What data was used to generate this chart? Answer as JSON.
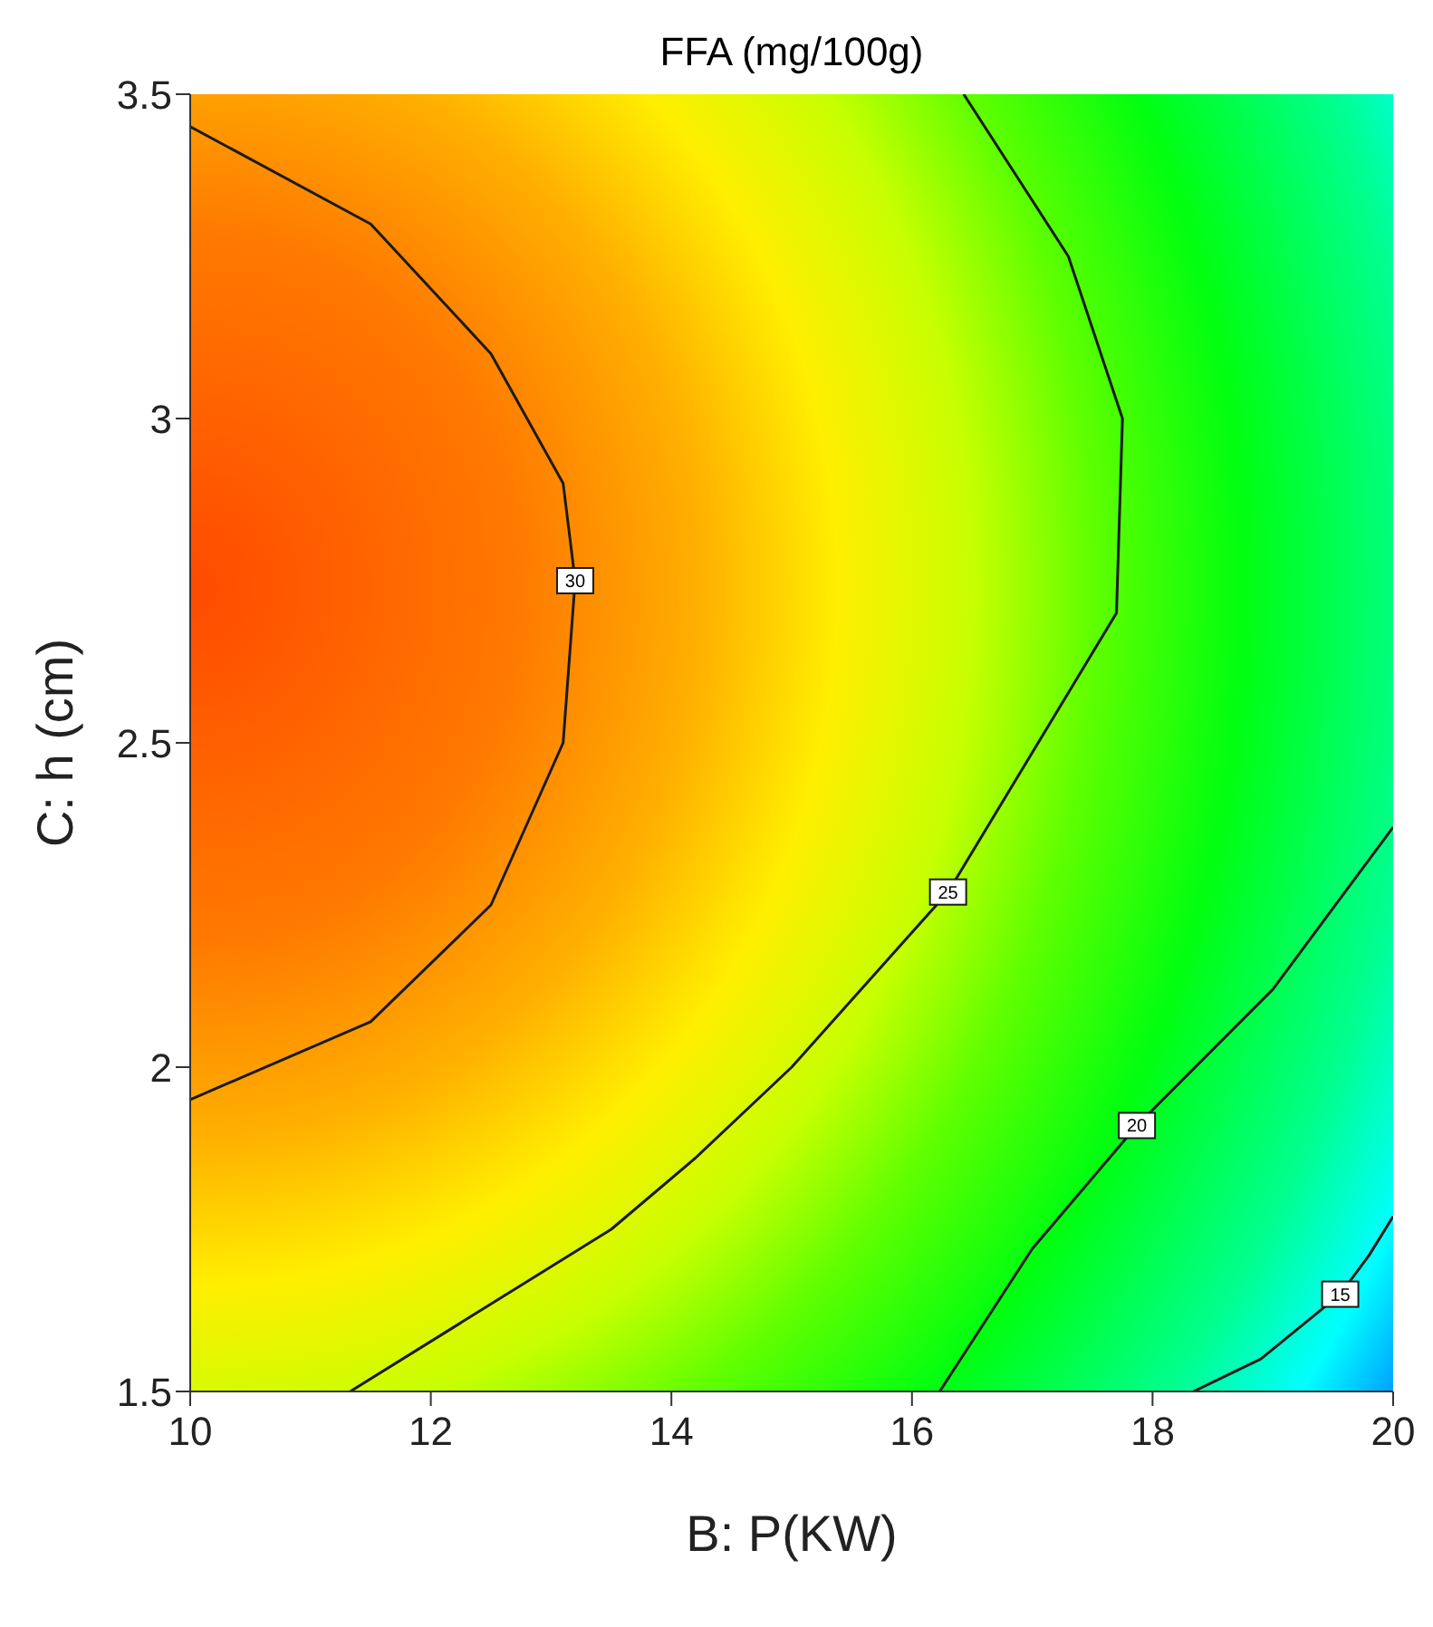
{
  "chart_data": {
    "type": "line",
    "title": "FFA (mg/100g)",
    "xlabel": "B: P(KW)",
    "ylabel": "C: h (cm)",
    "series": [
      {
        "name": "30",
        "color": "#1a1a1a",
        "x": [
          10,
          11.5,
          12.5,
          13.1,
          13.2,
          13.1,
          12.5,
          11.5,
          10
        ],
        "values": [
          3.45,
          3.3,
          3.1,
          2.9,
          2.75,
          2.5,
          2.25,
          2.07,
          1.95
        ]
      },
      {
        "name": "25",
        "color": "#1a1a1a",
        "x": [
          16.43,
          17.3,
          17.75,
          17.7,
          16.3,
          15,
          14.2,
          13.5,
          11.33
        ],
        "values": [
          3.5,
          3.25,
          3.0,
          2.7,
          2.27,
          2.0,
          1.86,
          1.75,
          1.5
        ]
      },
      {
        "name": "20",
        "color": "#1a1a1a",
        "x": [
          20,
          19,
          17.87,
          17,
          16.23
        ],
        "values": [
          2.37,
          2.12,
          1.91,
          1.72,
          1.5
        ]
      },
      {
        "name": "15",
        "color": "#1a1a1a",
        "x": [
          20,
          19.8,
          19.56,
          18.9,
          18.34
        ],
        "values": [
          1.77,
          1.71,
          1.65,
          1.55,
          1.5
        ]
      }
    ],
    "xlim": [
      10,
      20
    ],
    "xticks": [
      10,
      12,
      14,
      16,
      18,
      20
    ],
    "ylim": [
      1.5,
      3.5
    ],
    "yticks": [
      1.5,
      2,
      2.5,
      3,
      3.5
    ],
    "grid": false,
    "legend": false,
    "marker": "none",
    "line_style": "solid"
  }
}
